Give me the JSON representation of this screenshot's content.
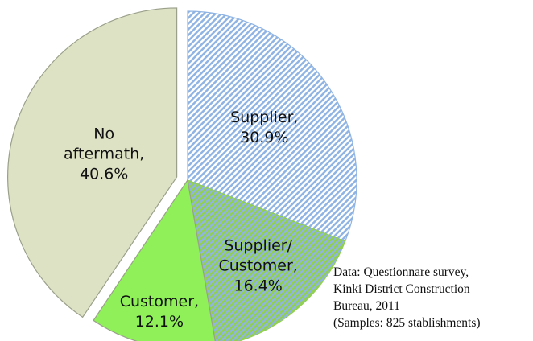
{
  "chart_data": {
    "type": "pie",
    "categories": [
      "Supplier,",
      "Supplier/ Customer,",
      "Customer,",
      "No aftermath,"
    ],
    "values": [
      30.9,
      16.4,
      12.1,
      40.6
    ],
    "value_labels": [
      "30.9%",
      "16.4%",
      "12.1%",
      "40.6%"
    ],
    "colors": [
      "#8fb4e3",
      "#92d050",
      "#8ff05a",
      "#dde2c4"
    ],
    "hatch_colors": [
      "#ffffff",
      "#8fb4e3",
      null,
      null
    ],
    "exploded": [
      false,
      false,
      false,
      true
    ],
    "note": [
      "Data: Questionnare survey,",
      "Kinki District Construction",
      "Bureau, 2011",
      "(Samples: 825 stablishments)"
    ]
  }
}
